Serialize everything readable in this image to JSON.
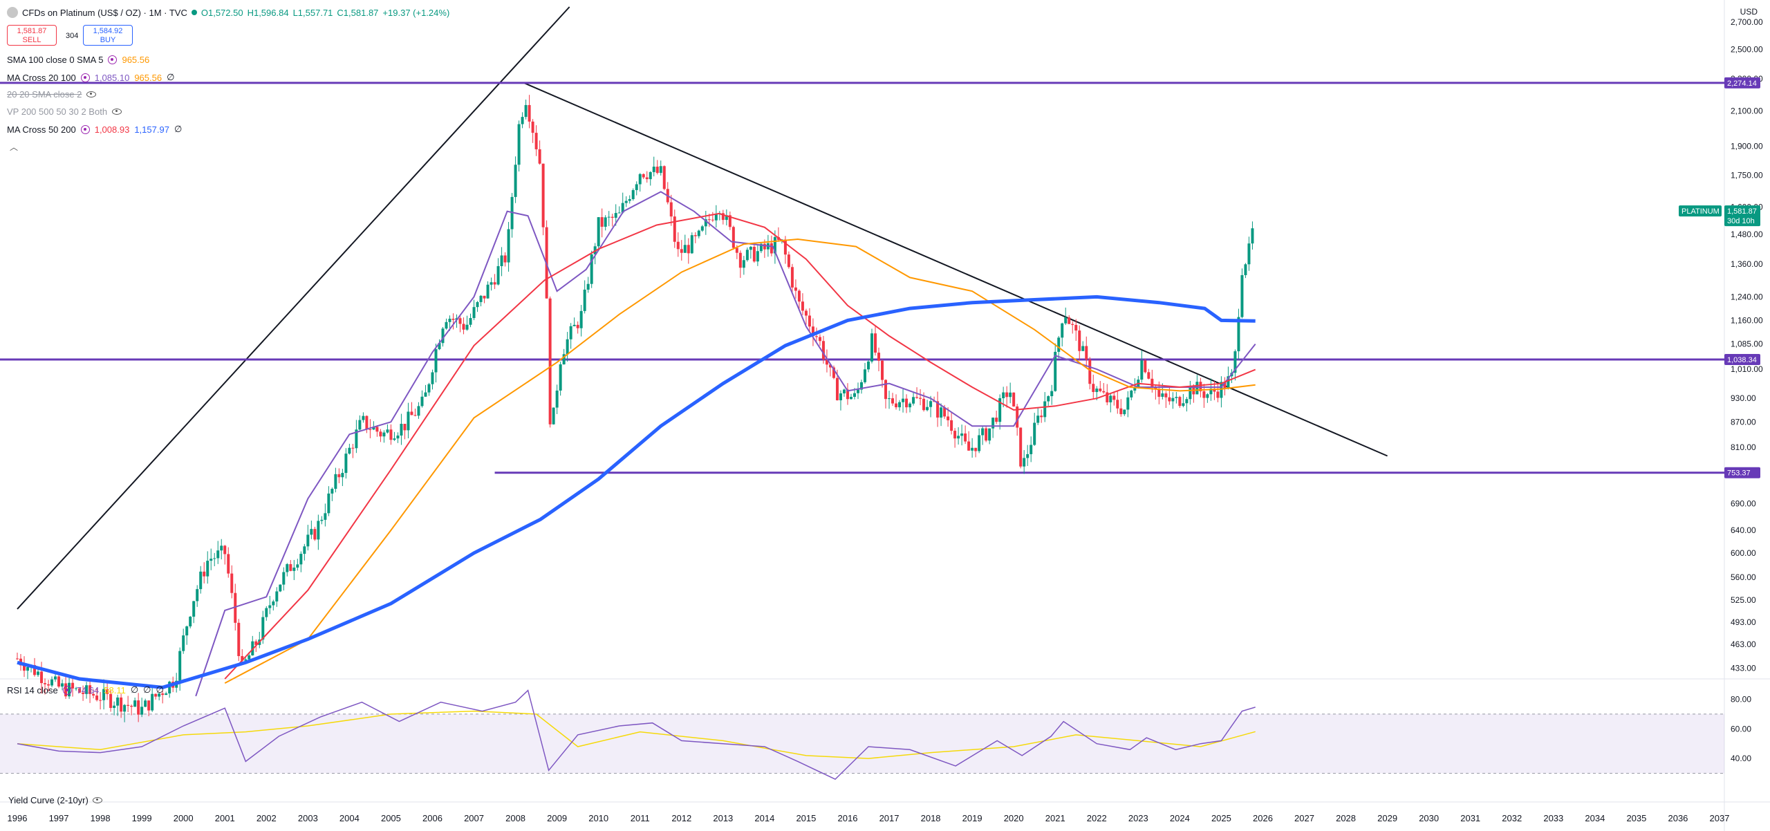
{
  "header": {
    "symbol_title": "CFDs on Platinum (US$ / OZ) · 1M · TVC",
    "open": "O1,572.50",
    "high": "H1,596.84",
    "low": "L1,557.71",
    "close": "C1,581.87",
    "change": "+19.37 (+1.24%)",
    "sell_price": "1,581.87",
    "sell_label": "SELL",
    "spread": "304",
    "buy_price": "1,584.92",
    "buy_label": "BUY",
    "currency": "USD"
  },
  "indicators": [
    {
      "label": "SMA 100 close 0 SMA 5",
      "values": [
        "965.56"
      ],
      "colors": [
        "#ff9800"
      ]
    },
    {
      "label": "MA Cross 20 100",
      "values": [
        "1,085.10",
        "965.56",
        "∅"
      ],
      "colors": [
        "#7e57c2",
        "#ff9800",
        "#131722"
      ]
    },
    {
      "label": "20 20 SMA close 2",
      "values": [],
      "colors": []
    },
    {
      "label": "VP 200 500 50 30 2 Both",
      "values": [],
      "colors": []
    },
    {
      "label": "MA Cross 50 200",
      "values": [
        "1,008.93",
        "1,157.97",
        "∅"
      ],
      "colors": [
        "#f23645",
        "#2962ff",
        "#131722"
      ]
    }
  ],
  "rsi_legend": {
    "label": "RSI 14 close",
    "values": [
      "74.64",
      "58.11",
      "∅",
      "∅",
      "∅"
    ],
    "colors": [
      "#7e57c2",
      "#f5d90a",
      "#131722",
      "#131722",
      "#131722"
    ]
  },
  "yield_label": "Yield Curve (2-10yr)",
  "price_labels": [
    {
      "text": "1,581.87",
      "sub": "30d 10h",
      "value": 1581.87,
      "color": "#089981",
      "tag": "PLATINUM"
    },
    {
      "text": "2,274.14",
      "value": 2274.14,
      "color": "#673ab7"
    },
    {
      "text": "1,038.34",
      "value": 1038.34,
      "color": "#673ab7"
    },
    {
      "text": "753.37",
      "value": 753.37,
      "color": "#673ab7"
    }
  ],
  "chart_data": {
    "type": "candlestick",
    "scale": "log",
    "x_axis_years": [
      "1996",
      "1997",
      "1998",
      "1999",
      "2000",
      "2001",
      "2002",
      "2003",
      "2004",
      "2005",
      "2006",
      "2007",
      "2008",
      "2009",
      "2010",
      "2011",
      "2012",
      "2013",
      "2014",
      "2015",
      "2016",
      "2017",
      "2018",
      "2019",
      "2020",
      "2021",
      "2022",
      "2023",
      "2024",
      "2025",
      "2026",
      "2027",
      "2028",
      "2029",
      "2030",
      "2031",
      "2032",
      "2033",
      "2034",
      "2035",
      "2036",
      "2037"
    ],
    "y_ticks": [
      "2,700.00",
      "2,500.00",
      "2,300.00",
      "2,100.00",
      "1,900.00",
      "1,750.00",
      "1,600.00",
      "1,480.00",
      "1,360.00",
      "1,240.00",
      "1,160.00",
      "1,085.00",
      "1,010.00",
      "930.00",
      "870.00",
      "810.00",
      "750.00",
      "690.00",
      "640.00",
      "600.00",
      "560.00",
      "525.00",
      "493.00",
      "463.00",
      "433.00"
    ],
    "y_tick_values": [
      2700,
      2500,
      2300,
      2100,
      1900,
      1750,
      1600,
      1480,
      1360,
      1240,
      1160,
      1085,
      1010,
      930,
      870,
      810,
      750,
      690,
      640,
      600,
      560,
      525,
      493,
      463,
      433
    ],
    "ylim": [
      420,
      2820
    ],
    "horizontal_levels": [
      2274.14,
      1038.34,
      753.37
    ],
    "trendlines": [
      {
        "from": {
          "year": 1996.0,
          "price": 512
        },
        "to": {
          "year": 2009.3,
          "price": 2820
        }
      },
      {
        "from": {
          "year": 2008.2,
          "price": 2274
        },
        "to": {
          "year": 2029.0,
          "price": 790
        }
      }
    ],
    "price_anchors": [
      [
        1996.0,
        445
      ],
      [
        1997.0,
        410
      ],
      [
        1998.0,
        400
      ],
      [
        1999.0,
        385
      ],
      [
        1999.8,
        420
      ],
      [
        2000.2,
        520
      ],
      [
        2000.6,
        590
      ],
      [
        2001.0,
        600
      ],
      [
        2001.4,
        430
      ],
      [
        2001.8,
        470
      ],
      [
        2002.2,
        540
      ],
      [
        2002.8,
        600
      ],
      [
        2003.2,
        640
      ],
      [
        2003.8,
        760
      ],
      [
        2004.3,
        870
      ],
      [
        2004.8,
        840
      ],
      [
        2005.3,
        860
      ],
      [
        2005.8,
        920
      ],
      [
        2006.3,
        1180
      ],
      [
        2006.8,
        1140
      ],
      [
        2007.3,
        1260
      ],
      [
        2007.8,
        1400
      ],
      [
        2008.1,
        2050
      ],
      [
        2008.25,
        2180
      ],
      [
        2008.6,
        1800
      ],
      [
        2008.85,
        820
      ],
      [
        2009.1,
        1060
      ],
      [
        2009.6,
        1180
      ],
      [
        2010.0,
        1520
      ],
      [
        2010.5,
        1560
      ],
      [
        2011.0,
        1770
      ],
      [
        2011.5,
        1760
      ],
      [
        2011.9,
        1400
      ],
      [
        2012.4,
        1460
      ],
      [
        2012.9,
        1620
      ],
      [
        2013.4,
        1380
      ],
      [
        2013.9,
        1410
      ],
      [
        2014.4,
        1450
      ],
      [
        2014.8,
        1220
      ],
      [
        2015.3,
        1100
      ],
      [
        2015.7,
        950
      ],
      [
        2016.2,
        930
      ],
      [
        2016.6,
        1100
      ],
      [
        2016.9,
        920
      ],
      [
        2017.4,
        930
      ],
      [
        2017.9,
        920
      ],
      [
        2018.4,
        880
      ],
      [
        2018.9,
        800
      ],
      [
        2019.4,
        850
      ],
      [
        2019.9,
        960
      ],
      [
        2020.2,
        760
      ],
      [
        2020.6,
        880
      ],
      [
        2020.9,
        960
      ],
      [
        2021.2,
        1200
      ],
      [
        2021.6,
        1080
      ],
      [
        2021.9,
        960
      ],
      [
        2022.3,
        920
      ],
      [
        2022.7,
        900
      ],
      [
        2023.1,
        1040
      ],
      [
        2023.5,
        930
      ],
      [
        2023.9,
        920
      ],
      [
        2024.3,
        960
      ],
      [
        2024.7,
        940
      ],
      [
        2025.0,
        960
      ],
      [
        2025.3,
        990
      ],
      [
        2025.5,
        1350
      ],
      [
        2025.7,
        1420
      ],
      [
        2025.82,
        1581.87
      ]
    ],
    "moving_averages": [
      {
        "name": "MA 20",
        "color": "#7e57c2",
        "values": [
          [
            2000.3,
            400
          ],
          [
            2001.0,
            510
          ],
          [
            2002.0,
            530
          ],
          [
            2003.0,
            700
          ],
          [
            2004.0,
            840
          ],
          [
            2005.0,
            870
          ],
          [
            2006.0,
            1060
          ],
          [
            2007.0,
            1240
          ],
          [
            2007.8,
            1580
          ],
          [
            2008.3,
            1560
          ],
          [
            2009.0,
            1260
          ],
          [
            2009.7,
            1340
          ],
          [
            2010.6,
            1580
          ],
          [
            2011.5,
            1670
          ],
          [
            2012.3,
            1580
          ],
          [
            2013.2,
            1450
          ],
          [
            2014.2,
            1430
          ],
          [
            2015.0,
            1140
          ],
          [
            2016.0,
            950
          ],
          [
            2017.0,
            970
          ],
          [
            2018.0,
            930
          ],
          [
            2019.0,
            860
          ],
          [
            2020.0,
            860
          ],
          [
            2021.0,
            1050
          ],
          [
            2022.0,
            1010
          ],
          [
            2023.0,
            960
          ],
          [
            2024.0,
            960
          ],
          [
            2025.0,
            960
          ],
          [
            2025.82,
            1085
          ]
        ]
      },
      {
        "name": "MA 50",
        "color": "#f23645",
        "values": [
          [
            2001.0,
            420
          ],
          [
            2003.0,
            540
          ],
          [
            2005.0,
            760
          ],
          [
            2007.0,
            1080
          ],
          [
            2008.7,
            1300
          ],
          [
            2010.0,
            1420
          ],
          [
            2011.4,
            1520
          ],
          [
            2012.9,
            1570
          ],
          [
            2014.0,
            1510
          ],
          [
            2015.0,
            1380
          ],
          [
            2016.0,
            1210
          ],
          [
            2017.0,
            1110
          ],
          [
            2018.0,
            1030
          ],
          [
            2019.0,
            960
          ],
          [
            2020.0,
            900
          ],
          [
            2021.0,
            910
          ],
          [
            2022.0,
            930
          ],
          [
            2023.0,
            970
          ],
          [
            2024.0,
            960
          ],
          [
            2025.0,
            970
          ],
          [
            2025.82,
            1009
          ]
        ]
      },
      {
        "name": "SMA 100",
        "color": "#ff9800",
        "values": [
          [
            2001.0,
            415
          ],
          [
            2003.0,
            470
          ],
          [
            2005.0,
            640
          ],
          [
            2007.0,
            880
          ],
          [
            2009.0,
            1030
          ],
          [
            2010.5,
            1180
          ],
          [
            2012.0,
            1330
          ],
          [
            2013.5,
            1440
          ],
          [
            2014.8,
            1460
          ],
          [
            2016.2,
            1430
          ],
          [
            2017.5,
            1310
          ],
          [
            2019.0,
            1260
          ],
          [
            2020.5,
            1130
          ],
          [
            2021.8,
            1010
          ],
          [
            2022.8,
            960
          ],
          [
            2024.0,
            950
          ],
          [
            2025.0,
            955
          ],
          [
            2025.82,
            966
          ]
        ]
      },
      {
        "name": "MA 200",
        "color": "#2962ff",
        "values": [
          [
            1996.0,
            440
          ],
          [
            1997.5,
            420
          ],
          [
            1999.5,
            410
          ],
          [
            2001.5,
            440
          ],
          [
            2003.0,
            470
          ],
          [
            2005.0,
            520
          ],
          [
            2007.0,
            600
          ],
          [
            2008.6,
            660
          ],
          [
            2010.0,
            740
          ],
          [
            2011.5,
            860
          ],
          [
            2013.0,
            970
          ],
          [
            2014.5,
            1080
          ],
          [
            2016.0,
            1160
          ],
          [
            2017.5,
            1200
          ],
          [
            2019.0,
            1220
          ],
          [
            2020.5,
            1230
          ],
          [
            2022.0,
            1240
          ],
          [
            2023.5,
            1220
          ],
          [
            2024.6,
            1200
          ],
          [
            2025.0,
            1160
          ],
          [
            2025.82,
            1158
          ]
        ]
      }
    ],
    "rsi": {
      "ylim": [
        20,
        90
      ],
      "levels": [
        70,
        30
      ],
      "y_ticks": [
        "80.00",
        "60.00",
        "40.00"
      ],
      "y_tick_values": [
        80,
        60,
        40
      ],
      "values": [
        [
          1996.0,
          50
        ],
        [
          1997.0,
          45
        ],
        [
          1998.0,
          44
        ],
        [
          1999.0,
          48
        ],
        [
          2000.0,
          62
        ],
        [
          2001.0,
          74
        ],
        [
          2001.5,
          38
        ],
        [
          2002.3,
          55
        ],
        [
          2003.3,
          68
        ],
        [
          2004.3,
          78
        ],
        [
          2005.2,
          65
        ],
        [
          2006.2,
          78
        ],
        [
          2007.2,
          72
        ],
        [
          2008.0,
          78
        ],
        [
          2008.3,
          86
        ],
        [
          2008.8,
          32
        ],
        [
          2009.5,
          56
        ],
        [
          2010.5,
          62
        ],
        [
          2011.3,
          64
        ],
        [
          2012.0,
          52
        ],
        [
          2013.0,
          50
        ],
        [
          2014.0,
          48
        ],
        [
          2014.8,
          38
        ],
        [
          2015.7,
          26
        ],
        [
          2016.5,
          48
        ],
        [
          2017.5,
          46
        ],
        [
          2018.6,
          35
        ],
        [
          2019.6,
          52
        ],
        [
          2020.2,
          42
        ],
        [
          2020.9,
          55
        ],
        [
          2021.2,
          65
        ],
        [
          2022.0,
          50
        ],
        [
          2022.8,
          46
        ],
        [
          2023.2,
          54
        ],
        [
          2023.9,
          46
        ],
        [
          2024.5,
          50
        ],
        [
          2025.0,
          52
        ],
        [
          2025.5,
          72
        ],
        [
          2025.82,
          74.64
        ]
      ],
      "ma_values": [
        [
          1996.0,
          50
        ],
        [
          1998.0,
          46
        ],
        [
          2000.0,
          56
        ],
        [
          2001.5,
          58
        ],
        [
          2003.0,
          62
        ],
        [
          2005.0,
          70
        ],
        [
          2007.0,
          72
        ],
        [
          2008.5,
          70
        ],
        [
          2009.5,
          48
        ],
        [
          2011.0,
          58
        ],
        [
          2013.0,
          52
        ],
        [
          2015.0,
          42
        ],
        [
          2016.5,
          40
        ],
        [
          2018.0,
          44
        ],
        [
          2020.0,
          48
        ],
        [
          2021.5,
          56
        ],
        [
          2023.0,
          52
        ],
        [
          2024.5,
          48
        ],
        [
          2025.82,
          58.11
        ]
      ]
    }
  }
}
